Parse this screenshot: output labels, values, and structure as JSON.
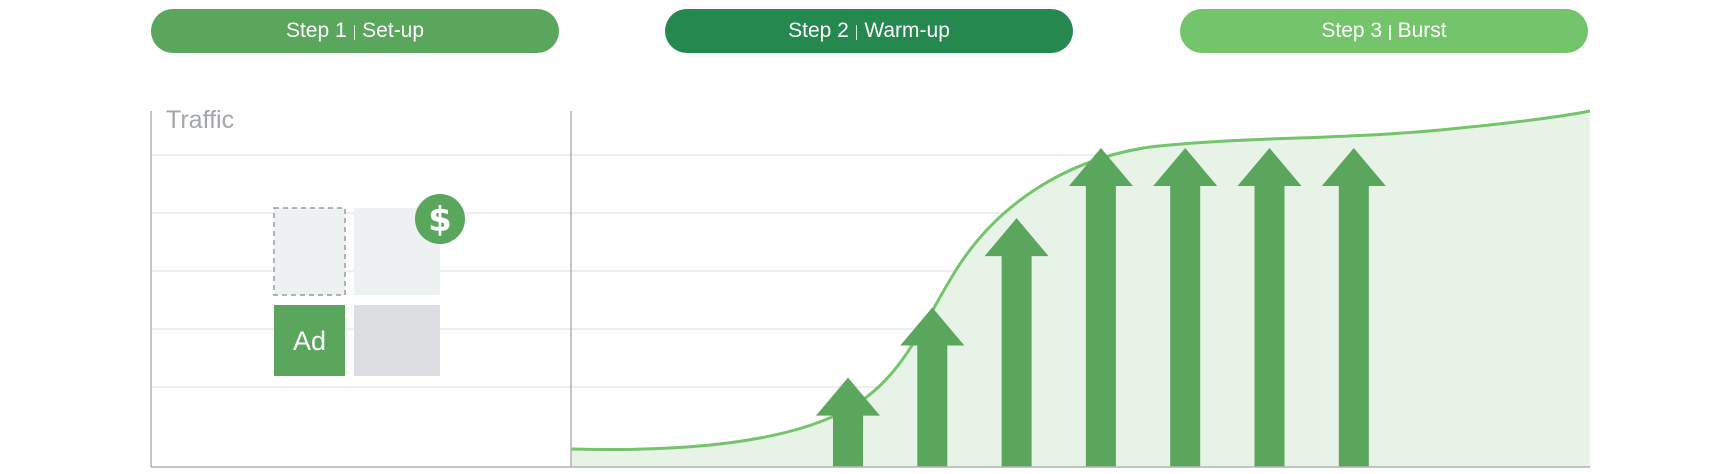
{
  "steps": [
    {
      "number": "Step 1",
      "name": "Set-up",
      "color": "#5aa65c"
    },
    {
      "number": "Step 2",
      "name": "Warm-up",
      "color": "#24884f"
    },
    {
      "number": "Step 3",
      "name": "Burst",
      "color": "#74c46c"
    }
  ],
  "axis_label": "Traffic",
  "ad_label": "Ad",
  "icons": {
    "money": "dollar-icon"
  },
  "colors": {
    "arrow": "#5aa65c",
    "curve": "#74c46c",
    "area": "#e6f3e6",
    "grid": "#dcdcdc",
    "axis": "#b4b4b4",
    "placeholder_light": "#eef1f2",
    "placeholder_gray": "#dcdde0"
  },
  "arrow_levels": [
    0.28,
    0.5,
    0.78,
    1.0,
    1.0,
    1.0,
    1.0
  ]
}
